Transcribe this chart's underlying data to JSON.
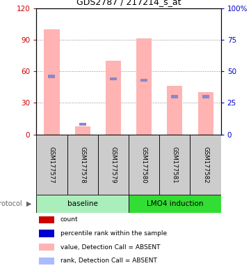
{
  "title": "GDS2787 / 217214_s_at",
  "samples": [
    "GSM177577",
    "GSM177578",
    "GSM177579",
    "GSM177580",
    "GSM177581",
    "GSM177582"
  ],
  "pink_bar_values": [
    100,
    8,
    70,
    91,
    46,
    40
  ],
  "blue_marker_values": [
    46,
    8,
    44,
    43,
    30,
    30
  ],
  "left_ylim": [
    0,
    120
  ],
  "right_ylim": [
    0,
    100
  ],
  "left_yticks": [
    0,
    30,
    60,
    90,
    120
  ],
  "right_yticks": [
    0,
    25,
    50,
    75,
    100
  ],
  "right_yticklabels": [
    "0",
    "25",
    "50",
    "75",
    "100%"
  ],
  "left_yticklabels": [
    "0",
    "30",
    "60",
    "90",
    "120"
  ],
  "left_tick_color": "#cc0000",
  "right_tick_color": "#0000cc",
  "pink_bar_color": "#ffb3b3",
  "blue_marker_color": "#8888cc",
  "baseline_color_light": "#aaeebb",
  "baseline_color": "#88dd88",
  "lmo4_color": "#33cc33",
  "sample_box_color": "#cccccc",
  "grid_color": "#888888",
  "background_color": "#ffffff",
  "legend_colors": [
    "#cc0000",
    "#0000cc",
    "#ffb3b3",
    "#aabbff"
  ],
  "legend_labels": [
    "count",
    "percentile rank within the sample",
    "value, Detection Call = ABSENT",
    "rank, Detection Call = ABSENT"
  ],
  "groups_info": [
    {
      "label": "baseline",
      "start": 0,
      "end": 2,
      "color": "#aaeebb"
    },
    {
      "label": "LMO4 induction",
      "start": 3,
      "end": 5,
      "color": "#33dd33"
    }
  ]
}
